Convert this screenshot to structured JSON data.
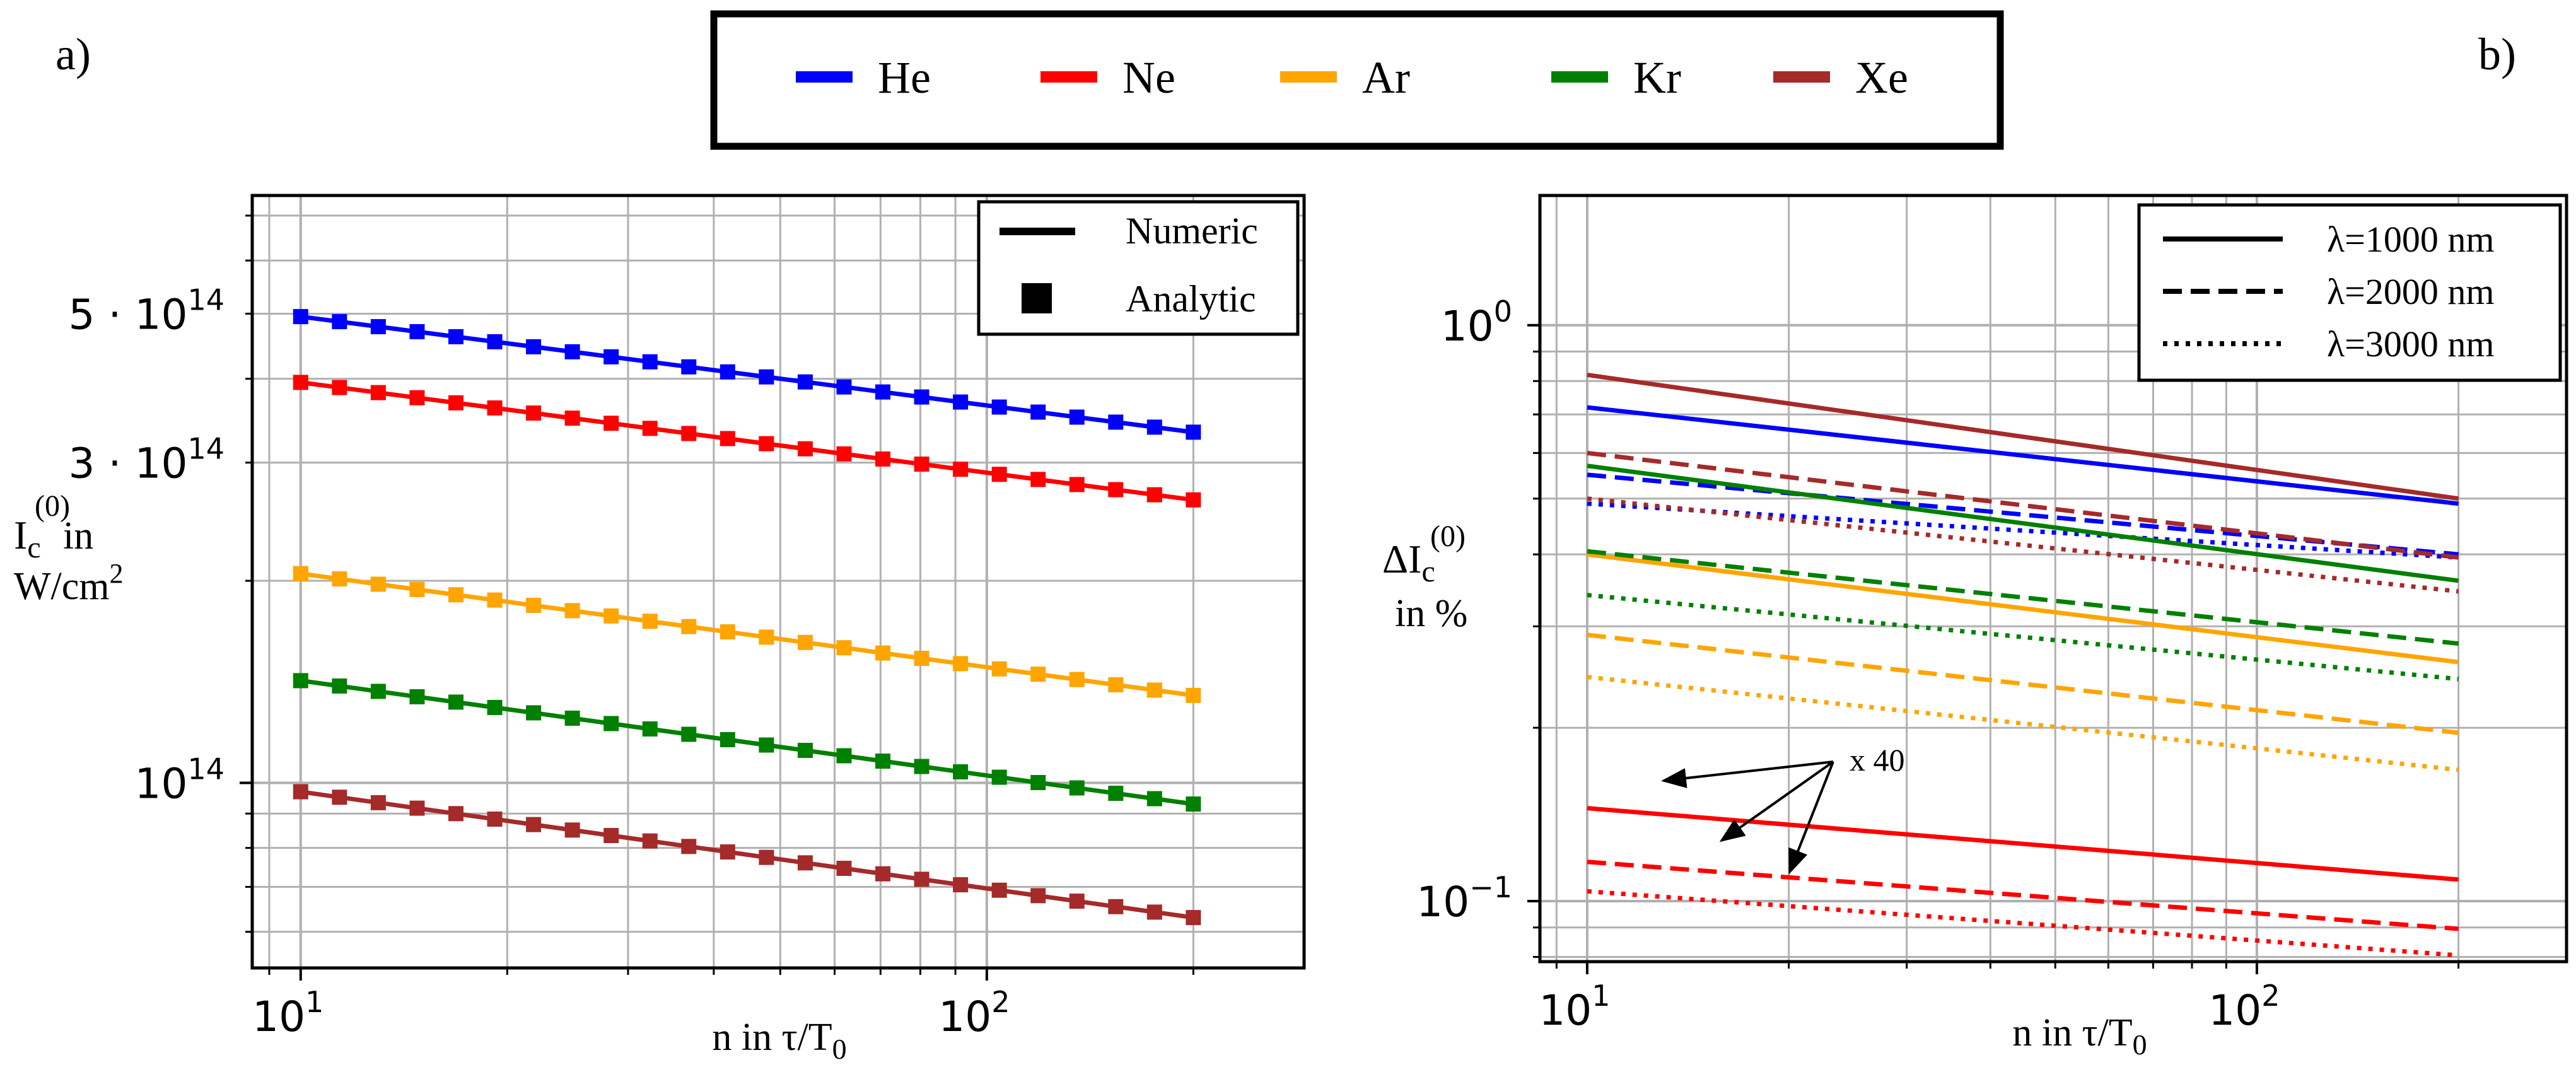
{
  "figure": {
    "panel_a_label": "a)",
    "panel_b_label": "b)"
  },
  "legend_top": {
    "items": [
      {
        "name": "He",
        "color": "#0000ff"
      },
      {
        "name": "Ne",
        "color": "#ff0000"
      },
      {
        "name": "Ar",
        "color": "#ffa500"
      },
      {
        "name": "Kr",
        "color": "#008000"
      },
      {
        "name": "Xe",
        "color": "#a52a2a"
      }
    ]
  },
  "chart_data": [
    {
      "type": "line",
      "panel": "a",
      "xscale": "log",
      "yscale": "log",
      "xlim": [
        8.5,
        290
      ],
      "ylim": [
        53000000000000.0,
        750000000000000.0
      ],
      "xlabel": "n in τ/T",
      "xlabel_sub": "0",
      "ylabel_lines": [
        "I",
        "c",
        "(0)",
        "in",
        "W/cm",
        "2"
      ],
      "xticks": [
        {
          "value": 10,
          "base": "10",
          "exp": "1"
        },
        {
          "value": 100,
          "base": "10",
          "exp": "2"
        }
      ],
      "yticks": [
        {
          "value": 500000000000000.0,
          "prefix": "5 · 10",
          "exp": "14"
        },
        {
          "value": 300000000000000.0,
          "prefix": "3 · 10",
          "exp": "14"
        },
        {
          "value": 100000000000000.0,
          "prefix": "10",
          "exp": "14"
        }
      ],
      "legend": {
        "placement": "top-right",
        "entries": [
          {
            "label": "Numeric",
            "marker": "line"
          },
          {
            "label": "Analytic",
            "marker": "square"
          }
        ]
      },
      "x_range": [
        10,
        200
      ],
      "marker_count": 24,
      "series": [
        {
          "name": "He",
          "color": "#0000ff",
          "y_start": 495000000000000.0,
          "y_end": 333000000000000.0
        },
        {
          "name": "Ne",
          "color": "#ff0000",
          "y_start": 395000000000000.0,
          "y_end": 264000000000000.0
        },
        {
          "name": "Ar",
          "color": "#ffa500",
          "y_start": 205000000000000.0,
          "y_end": 135000000000000.0
        },
        {
          "name": "Kr",
          "color": "#008000",
          "y_start": 142000000000000.0,
          "y_end": 93000000000000.0
        },
        {
          "name": "Xe",
          "color": "#a52a2a",
          "y_start": 97000000000000.0,
          "y_end": 63000000000000.0
        }
      ]
    },
    {
      "type": "line",
      "panel": "b",
      "xscale": "log",
      "yscale": "log",
      "xlim": [
        8.5,
        290
      ],
      "ylim": [
        0.0785,
        1.68
      ],
      "xlabel": "n in τ/T",
      "xlabel_sub": "0",
      "ylabel_lines": [
        "ΔI",
        "c",
        "(0)",
        "in %"
      ],
      "xticks": [
        {
          "value": 10,
          "base": "10",
          "exp": "1"
        },
        {
          "value": 100,
          "base": "10",
          "exp": "2"
        }
      ],
      "yticks": [
        {
          "value": 1.0,
          "base": "10",
          "exp": "0"
        },
        {
          "value": 0.1,
          "base": "10",
          "exp": "−1"
        }
      ],
      "legend": {
        "placement": "top-right",
        "entries": [
          {
            "label": "λ=1000 nm",
            "dash": "solid"
          },
          {
            "label": "λ=2000 nm",
            "dash": "dashed"
          },
          {
            "label": "λ=3000 nm",
            "dash": "dotted"
          }
        ]
      },
      "annotation": {
        "text": "x 40",
        "targets": [
          "Ne λ=1000 nm",
          "Ne λ=2000 nm",
          "Ne λ=3000 nm"
        ]
      },
      "x_range": [
        10,
        200
      ],
      "series": [
        {
          "name": "He λ=1000 nm",
          "color": "#0000ff",
          "dash": "solid",
          "y_start": 0.72,
          "y_end": 0.49
        },
        {
          "name": "He λ=2000 nm",
          "color": "#0000ff",
          "dash": "dashed",
          "y_start": 0.55,
          "y_end": 0.4
        },
        {
          "name": "He λ=3000 nm",
          "color": "#0000ff",
          "dash": "dotted",
          "y_start": 0.49,
          "y_end": 0.395
        },
        {
          "name": "Ne λ=1000 nm",
          "color": "#ff0000",
          "dash": "solid",
          "y_start": 0.145,
          "y_end": 0.109
        },
        {
          "name": "Ne λ=2000 nm",
          "color": "#ff0000",
          "dash": "dashed",
          "y_start": 0.117,
          "y_end": 0.0895
        },
        {
          "name": "Ne λ=3000 nm",
          "color": "#ff0000",
          "dash": "dotted",
          "y_start": 0.104,
          "y_end": 0.0805
        },
        {
          "name": "Ar λ=1000 nm",
          "color": "#ffa500",
          "dash": "solid",
          "y_start": 0.4,
          "y_end": 0.26
        },
        {
          "name": "Ar λ=2000 nm",
          "color": "#ffa500",
          "dash": "dashed",
          "y_start": 0.29,
          "y_end": 0.196
        },
        {
          "name": "Ar λ=3000 nm",
          "color": "#ffa500",
          "dash": "dotted",
          "y_start": 0.245,
          "y_end": 0.169
        },
        {
          "name": "Kr λ=1000 nm",
          "color": "#008000",
          "dash": "solid",
          "y_start": 0.57,
          "y_end": 0.36
        },
        {
          "name": "Kr λ=2000 nm",
          "color": "#008000",
          "dash": "dashed",
          "y_start": 0.405,
          "y_end": 0.28
        },
        {
          "name": "Kr λ=3000 nm",
          "color": "#008000",
          "dash": "dotted",
          "y_start": 0.34,
          "y_end": 0.243
        },
        {
          "name": "Xe λ=1000 nm",
          "color": "#a52a2a",
          "dash": "solid",
          "y_start": 0.82,
          "y_end": 0.5
        },
        {
          "name": "Xe λ=2000 nm",
          "color": "#a52a2a",
          "dash": "dashed",
          "y_start": 0.6,
          "y_end": 0.395
        },
        {
          "name": "Xe λ=3000 nm",
          "color": "#a52a2a",
          "dash": "dotted",
          "y_start": 0.5,
          "y_end": 0.345
        }
      ]
    }
  ]
}
